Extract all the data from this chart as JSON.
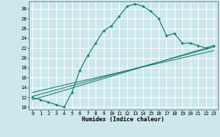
{
  "xlabel": "Humidex (Indice chaleur)",
  "bg_color": "#cce8ec",
  "line_color": "#1a7a6e",
  "grid_color": "#b0d4d8",
  "xlim": [
    -0.5,
    23.5
  ],
  "ylim": [
    9.5,
    31.5
  ],
  "yticks": [
    10,
    12,
    14,
    16,
    18,
    20,
    22,
    24,
    26,
    28,
    30
  ],
  "xticks": [
    0,
    1,
    2,
    3,
    4,
    5,
    6,
    7,
    8,
    9,
    10,
    11,
    12,
    13,
    14,
    15,
    16,
    17,
    18,
    19,
    20,
    21,
    22,
    23
  ],
  "curve1_x": [
    0,
    1,
    2,
    3,
    4,
    5,
    6,
    7,
    8,
    9,
    10,
    11,
    12,
    13,
    14,
    15,
    16,
    17,
    18,
    19,
    20,
    21,
    22,
    23
  ],
  "curve1_y": [
    12.0,
    11.5,
    11.0,
    10.5,
    10.0,
    13.0,
    17.5,
    20.5,
    23.0,
    25.5,
    26.5,
    28.5,
    30.5,
    31.0,
    30.5,
    29.5,
    28.0,
    24.5,
    25.0,
    23.0,
    23.0,
    22.5,
    22.0,
    22.5
  ],
  "line2_x": [
    0,
    23
  ],
  "line2_y": [
    11.5,
    22.5
  ],
  "line3_x": [
    0,
    23
  ],
  "line3_y": [
    12.2,
    22.2
  ],
  "line4_x": [
    0,
    23
  ],
  "line4_y": [
    13.0,
    21.5
  ],
  "xlabel_fontsize": 6.0,
  "tick_fontsize": 5.2
}
